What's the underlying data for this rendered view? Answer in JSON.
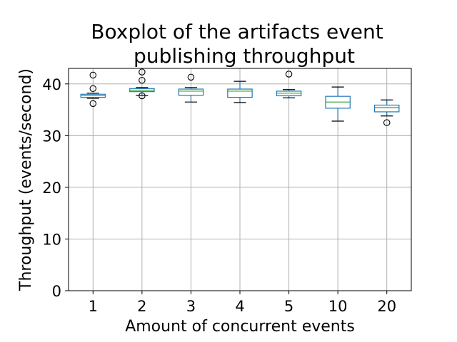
{
  "chart_data": {
    "type": "boxplot",
    "title_lines": [
      "Boxplot of the artifacts event",
      "publishing throughput"
    ],
    "xlabel": "Amount of concurrent events",
    "ylabel": "Throughput (events/second)",
    "ylim": [
      0,
      43
    ],
    "yticks": [
      0,
      10,
      20,
      30,
      40
    ],
    "grid": true,
    "categories": [
      "1",
      "2",
      "3",
      "4",
      "5",
      "10",
      "20"
    ],
    "boxes": [
      {
        "category": "1",
        "whisker_low": 37.2,
        "q1": 37.4,
        "median": 37.7,
        "q3": 38.0,
        "whisker_high": 38.2,
        "outliers": [
          41.7,
          39.1,
          36.2
        ]
      },
      {
        "category": "2",
        "whisker_low": 37.8,
        "q1": 38.5,
        "median": 38.8,
        "q3": 39.1,
        "whisker_high": 39.3,
        "outliers": [
          42.3,
          40.7,
          37.7
        ]
      },
      {
        "category": "3",
        "whisker_low": 36.5,
        "q1": 37.8,
        "median": 38.6,
        "q3": 39.0,
        "whisker_high": 39.3,
        "outliers": [
          41.3
        ]
      },
      {
        "category": "4",
        "whisker_low": 36.4,
        "q1": 37.4,
        "median": 38.6,
        "q3": 39.0,
        "whisker_high": 40.5,
        "outliers": []
      },
      {
        "category": "5",
        "whisker_low": 37.3,
        "q1": 37.7,
        "median": 38.2,
        "q3": 38.6,
        "whisker_high": 38.9,
        "outliers": [
          41.9
        ]
      },
      {
        "category": "10",
        "whisker_low": 32.8,
        "q1": 35.3,
        "median": 36.5,
        "q3": 37.6,
        "whisker_high": 39.4,
        "outliers": []
      },
      {
        "category": "20",
        "whisker_low": 33.8,
        "q1": 34.6,
        "median": 35.4,
        "q3": 35.9,
        "whisker_high": 36.9,
        "outliers": [
          32.5
        ]
      }
    ],
    "colors": {
      "box": "#1f77b4",
      "median": "#2ca02c",
      "whisker_cap": "#000000",
      "grid": "#b0b0b0",
      "outlier": "#000000"
    }
  }
}
